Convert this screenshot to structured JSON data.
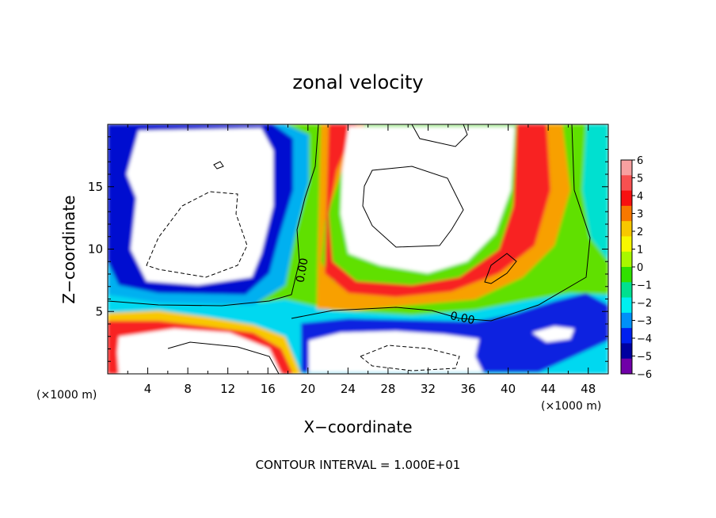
{
  "chart_data": {
    "type": "heatmap",
    "title": "zonal velocity",
    "xlabel": "X−coordinate",
    "ylabel": "Z−coordinate",
    "x_unit_left": "(×1000 m)",
    "x_unit_right": "(×1000 m)",
    "footer": "CONTOUR INTERVAL = 1.000E+01",
    "contour_label": "0.00",
    "xlim": [
      0,
      50
    ],
    "ylim": [
      0,
      20
    ],
    "xticks": [
      4,
      8,
      12,
      16,
      20,
      24,
      28,
      32,
      36,
      40,
      44,
      48
    ],
    "xtick_labels": [
      "4",
      "8",
      "12",
      "16",
      "20",
      "24",
      "28",
      "32",
      "36",
      "40",
      "44",
      "48"
    ],
    "yticks": [
      5,
      10,
      15
    ],
    "ytick_labels": [
      "5",
      "10",
      "15"
    ],
    "colorbar": {
      "range": [
        -6,
        6
      ],
      "ticks": [
        6,
        5,
        4,
        3,
        2,
        1,
        0,
        -1,
        -2,
        -3,
        -4,
        -5,
        -6
      ],
      "tick_labels": [
        "6",
        "5",
        "4",
        "3",
        "2",
        "1",
        "0",
        "−1",
        "−2",
        "−3",
        "−4",
        "−5",
        "−6"
      ],
      "colors": [
        "#f8a0a0",
        "#f85050",
        "#f81010",
        "#f87800",
        "#f8c800",
        "#f8f800",
        "#a8f800",
        "#30e000",
        "#00e090",
        "#00f0f0",
        "#0090f8",
        "#0020f0",
        "#0000a0",
        "#7000a8"
      ]
    },
    "field_description_values": {
      "wind_regions": [
        {
          "label": "upper-left white",
          "value": "below -6"
        },
        {
          "label": "upper-middle white",
          "value": "above 6"
        },
        {
          "label": "lower-middle white",
          "value": "below -6"
        },
        {
          "label": "lower-left white",
          "value": "above 6"
        }
      ]
    }
  }
}
